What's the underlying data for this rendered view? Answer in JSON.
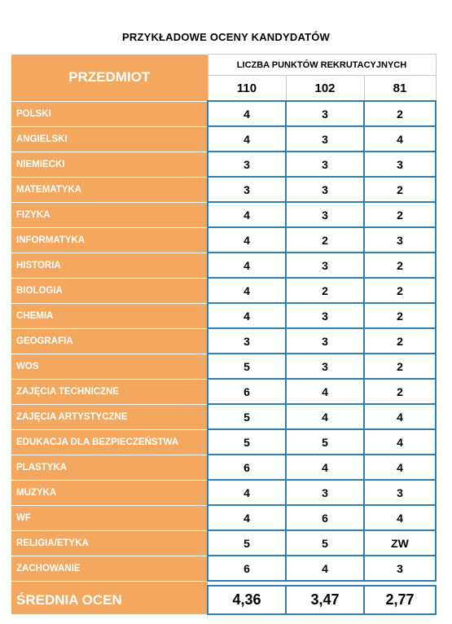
{
  "title": "PRZYKŁADOWE OCENY KANDYDATÓW",
  "header": {
    "subject_label": "PRZEDMIOT",
    "points_label": "LICZBA PUNKTÓW REKRUTACYJNYCH",
    "points": [
      "110",
      "102",
      "81"
    ]
  },
  "rows": [
    {
      "subject": "POLSKI",
      "grades": [
        "4",
        "3",
        "2"
      ]
    },
    {
      "subject": "ANGIELSKI",
      "grades": [
        "4",
        "3",
        "4"
      ]
    },
    {
      "subject": "NIEMIECKI",
      "grades": [
        "3",
        "3",
        "3"
      ]
    },
    {
      "subject": "MATEMATYKA",
      "grades": [
        "3",
        "3",
        "2"
      ]
    },
    {
      "subject": "FIZYKA",
      "grades": [
        "4",
        "3",
        "2"
      ]
    },
    {
      "subject": "INFORMATYKA",
      "grades": [
        "4",
        "2",
        "3"
      ]
    },
    {
      "subject": "HISTORIA",
      "grades": [
        "4",
        "3",
        "2"
      ]
    },
    {
      "subject": "BIOLOGIA",
      "grades": [
        "4",
        "2",
        "2"
      ]
    },
    {
      "subject": "CHEMIA",
      "grades": [
        "4",
        "3",
        "2"
      ]
    },
    {
      "subject": "GEOGRAFIA",
      "grades": [
        "3",
        "3",
        "2"
      ]
    },
    {
      "subject": "WOS",
      "grades": [
        "5",
        "3",
        "2"
      ]
    },
    {
      "subject": "ZAJĘCIA TECHNICZNE",
      "grades": [
        "6",
        "4",
        "2"
      ]
    },
    {
      "subject": "ZAJĘCIA ARTYSTYCZNE",
      "grades": [
        "5",
        "4",
        "4"
      ]
    },
    {
      "subject": "EDUKACJA DLA BEZPIECZEŃSTWA",
      "grades": [
        "5",
        "5",
        "4"
      ]
    },
    {
      "subject": "PLASTYKA",
      "grades": [
        "6",
        "4",
        "4"
      ]
    },
    {
      "subject": "MUZYKA",
      "grades": [
        "4",
        "3",
        "3"
      ]
    },
    {
      "subject": "WF",
      "grades": [
        "4",
        "6",
        "4"
      ]
    },
    {
      "subject": "RELIGIA/ETYKA",
      "grades": [
        "5",
        "5",
        "ZW"
      ]
    },
    {
      "subject": "ZACHOWANIE",
      "grades": [
        "6",
        "4",
        "3"
      ]
    }
  ],
  "average": {
    "label": "ŚREDNIA OCEN",
    "values": [
      "4,36",
      "3,47",
      "2,77"
    ]
  },
  "colors": {
    "subject_bg": "#f4a85f",
    "grade_border": "#2c7fb8",
    "subject_text": "#ffffff"
  }
}
